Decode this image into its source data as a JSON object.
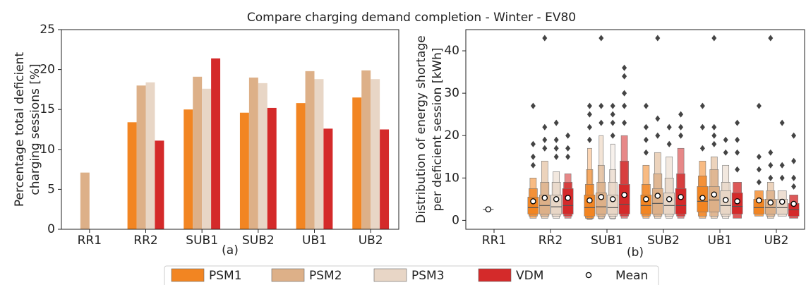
{
  "title": "Compare charging demand completion - Winter - EV80",
  "chart_data": [
    {
      "type": "bar",
      "xlabel": "(a)",
      "ylabel": [
        "Percentage total deficient",
        "charging sessions [%]"
      ],
      "categories": [
        "RR1",
        "RR2",
        "SUB1",
        "SUB2",
        "UB1",
        "UB2"
      ],
      "ylim": [
        0,
        25
      ],
      "yticks": [
        0,
        5,
        10,
        15,
        20,
        25
      ],
      "series": [
        {
          "name": "PSM1",
          "color": "#f28522",
          "values": [
            0,
            13.4,
            15.0,
            14.6,
            15.8,
            16.5
          ]
        },
        {
          "name": "PSM2",
          "color": "#ddb088",
          "values": [
            7.1,
            18.0,
            19.1,
            19.0,
            19.8,
            19.9
          ]
        },
        {
          "name": "PSM3",
          "color": "#e8d6c6",
          "values": [
            0,
            18.4,
            17.6,
            18.3,
            18.8,
            18.8
          ]
        },
        {
          "name": "VDM",
          "color": "#d42a2a",
          "values": [
            0,
            11.1,
            21.4,
            15.2,
            12.6,
            12.5
          ]
        }
      ]
    },
    {
      "type": "boxen",
      "xlabel": "(b)",
      "ylabel": [
        "Distribution of energy shortage",
        "per deficient session [kWh]"
      ],
      "categories": [
        "RR1",
        "RR2",
        "SUB1",
        "SUB2",
        "UB1",
        "UB2"
      ],
      "ylim": [
        -2.1,
        45
      ],
      "yticks": [
        0,
        10,
        20,
        30,
        40
      ],
      "mean_label": "Mean",
      "series": [
        {
          "name": "PSM1",
          "color": "#f28522",
          "values": [
            null,
            {
              "median": 3,
              "mean": 4.5,
              "boxes": [
                [
                  1.5,
                  5.5
                ],
                [
                  1,
                  7.5
                ],
                [
                  0.5,
                  10
                ]
              ],
              "outliers": [
                13,
                15,
                18,
                27
              ]
            },
            {
              "median": 3,
              "mean": 4.7,
              "boxes": [
                [
                  1,
                  6
                ],
                [
                  0.5,
                  8.5
                ],
                [
                  0.3,
                  12
                ],
                [
                  0.2,
                  17
                ]
              ],
              "outliers": [
                19,
                22,
                25,
                27
              ]
            },
            {
              "median": 3.5,
              "mean": 5,
              "boxes": [
                [
                  1.5,
                  6
                ],
                [
                  1,
                  8.5
                ],
                [
                  0.5,
                  13
                ]
              ],
              "outliers": [
                16,
                19,
                22,
                27
              ]
            },
            {
              "median": 4.5,
              "mean": 5.3,
              "boxes": [
                [
                  2,
                  8
                ],
                [
                  1,
                  10.5
                ],
                [
                  0.5,
                  14
                ]
              ],
              "outliers": [
                17,
                22,
                27
              ]
            },
            {
              "median": 3,
              "mean": 4.7,
              "boxes": [
                [
                  1.5,
                  5
                ],
                [
                  1,
                  7
                ]
              ],
              "outliers": [
                9,
                12,
                15,
                27
              ]
            }
          ]
        },
        {
          "name": "PSM2",
          "color": "#ddb088",
          "values": [
            {
              "median": 2.6,
              "mean": 2.6,
              "boxes": [],
              "outliers": []
            },
            {
              "median": 3.5,
              "mean": 5.3,
              "boxes": [
                [
                  1.5,
                  6
                ],
                [
                  1,
                  9
                ],
                [
                  0.5,
                  14
                ]
              ],
              "outliers": [
                17,
                19,
                22,
                43
              ]
            },
            {
              "median": 3.2,
              "mean": 5.5,
              "boxes": [
                [
                  1.5,
                  6.5
                ],
                [
                  1,
                  9
                ],
                [
                  0.5,
                  13
                ],
                [
                  0.3,
                  20
                ]
              ],
              "outliers": [
                23,
                27,
                43
              ]
            },
            {
              "median": 4,
              "mean": 5.8,
              "boxes": [
                [
                  1.5,
                  7.5
                ],
                [
                  1,
                  11
                ],
                [
                  0.5,
                  16
                ]
              ],
              "outliers": [
                20,
                24,
                43
              ]
            },
            {
              "median": 4.8,
              "mean": 6.1,
              "boxes": [
                [
                  2,
                  8
                ],
                [
                  1,
                  12
                ],
                [
                  0.5,
                  15
                ]
              ],
              "outliers": [
                18,
                20,
                22,
                43
              ]
            },
            {
              "median": 3,
              "mean": 4.2,
              "boxes": [
                [
                  1.5,
                  5
                ],
                [
                  1,
                  7
                ],
                [
                  0.5,
                  9
                ]
              ],
              "outliers": [
                10,
                13,
                16,
                43
              ]
            }
          ]
        },
        {
          "name": "PSM3",
          "color": "#e8d6c6",
          "values": [
            null,
            {
              "median": 3.2,
              "mean": 5,
              "boxes": [
                [
                  1.5,
                  6
                ],
                [
                  1,
                  9
                ],
                [
                  0.5,
                  11.5
                ]
              ],
              "outliers": [
                15,
                17,
                19,
                23
              ]
            },
            {
              "median": 3,
              "mean": 5,
              "boxes": [
                [
                  1.5,
                  6
                ],
                [
                  1,
                  9
                ],
                [
                  0.5,
                  12
                ],
                [
                  0.3,
                  18
                ]
              ],
              "outliers": [
                20,
                23,
                25,
                27
              ]
            },
            {
              "median": 3.5,
              "mean": 5,
              "boxes": [
                [
                  1.5,
                  6.5
                ],
                [
                  1,
                  10
                ],
                [
                  0.5,
                  15
                ]
              ],
              "outliers": [
                18,
                22
              ]
            },
            {
              "median": 3.5,
              "mean": 4.8,
              "boxes": [
                [
                  1.5,
                  7
                ],
                [
                  1,
                  9
                ],
                [
                  0.5,
                  13
                ]
              ],
              "outliers": [
                16,
                19
              ]
            },
            {
              "median": 3,
              "mean": 4.4,
              "boxes": [
                [
                  1.5,
                  5
                ],
                [
                  1,
                  7
                ]
              ],
              "outliers": [
                10,
                13,
                23
              ]
            }
          ]
        },
        {
          "name": "VDM",
          "color": "#d42a2a",
          "values": [
            null,
            {
              "median": 3.5,
              "mean": 5.3,
              "boxes": [
                [
                  1.5,
                  7.5
                ],
                [
                  1,
                  9
                ],
                [
                  0.5,
                  11
                ]
              ],
              "outliers": [
                15,
                17,
                20
              ]
            },
            {
              "median": 3.8,
              "mean": 6,
              "boxes": [
                [
                  1.5,
                  8.5
                ],
                [
                  1,
                  14
                ],
                [
                  0.5,
                  20
                ]
              ],
              "outliers": [
                23,
                27,
                30,
                34,
                36
              ]
            },
            {
              "median": 3.5,
              "mean": 5.5,
              "boxes": [
                [
                  1.5,
                  7.5
                ],
                [
                  1,
                  11
                ],
                [
                  0.5,
                  17
                ]
              ],
              "outliers": [
                20,
                22,
                25
              ]
            },
            {
              "median": 3.3,
              "mean": 4.5,
              "boxes": [
                [
                  1.5,
                  6.5
                ],
                [
                  0.5,
                  9
                ]
              ],
              "outliers": [
                12,
                16,
                19,
                23
              ]
            },
            {
              "median": 2.5,
              "mean": 3.9,
              "boxes": [
                [
                  1,
                  4
                ],
                [
                  0.5,
                  6
                ]
              ],
              "outliers": [
                8,
                10,
                14,
                20
              ]
            }
          ]
        }
      ]
    }
  ]
}
